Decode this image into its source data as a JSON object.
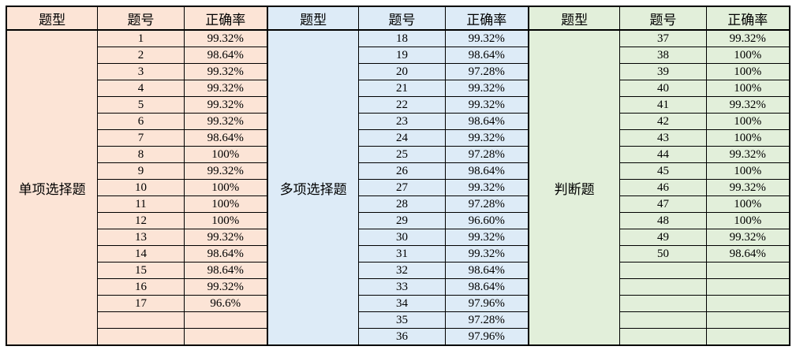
{
  "page": {
    "background_color": "#ffffff",
    "border_color": "#000000"
  },
  "headers": [
    "题型",
    "题号",
    "正确率"
  ],
  "sections": [
    {
      "type_label": "单项选择题",
      "bg_color": "#fce4d6",
      "rows": [
        {
          "no": "1",
          "rate": "99.32%"
        },
        {
          "no": "2",
          "rate": "98.64%"
        },
        {
          "no": "3",
          "rate": "99.32%"
        },
        {
          "no": "4",
          "rate": "99.32%"
        },
        {
          "no": "5",
          "rate": "99.32%"
        },
        {
          "no": "6",
          "rate": "99.32%"
        },
        {
          "no": "7",
          "rate": "98.64%"
        },
        {
          "no": "8",
          "rate": "100%"
        },
        {
          "no": "9",
          "rate": "99.32%"
        },
        {
          "no": "10",
          "rate": "100%"
        },
        {
          "no": "11",
          "rate": "100%"
        },
        {
          "no": "12",
          "rate": "100%"
        },
        {
          "no": "13",
          "rate": "99.32%"
        },
        {
          "no": "14",
          "rate": "98.64%"
        },
        {
          "no": "15",
          "rate": "98.64%"
        },
        {
          "no": "16",
          "rate": "99.32%"
        },
        {
          "no": "17",
          "rate": "96.6%"
        },
        {
          "no": "",
          "rate": ""
        },
        {
          "no": "",
          "rate": ""
        }
      ]
    },
    {
      "type_label": "多项选择题",
      "bg_color": "#ddebf7",
      "rows": [
        {
          "no": "18",
          "rate": "99.32%"
        },
        {
          "no": "19",
          "rate": "98.64%"
        },
        {
          "no": "20",
          "rate": "97.28%"
        },
        {
          "no": "21",
          "rate": "99.32%"
        },
        {
          "no": "22",
          "rate": "99.32%"
        },
        {
          "no": "23",
          "rate": "98.64%"
        },
        {
          "no": "24",
          "rate": "99.32%"
        },
        {
          "no": "25",
          "rate": "97.28%"
        },
        {
          "no": "26",
          "rate": "98.64%"
        },
        {
          "no": "27",
          "rate": "99.32%"
        },
        {
          "no": "28",
          "rate": "97.28%"
        },
        {
          "no": "29",
          "rate": "96.60%"
        },
        {
          "no": "30",
          "rate": "99.32%"
        },
        {
          "no": "31",
          "rate": "99.32%"
        },
        {
          "no": "32",
          "rate": "98.64%"
        },
        {
          "no": "33",
          "rate": "98.64%"
        },
        {
          "no": "34",
          "rate": "97.96%"
        },
        {
          "no": "35",
          "rate": "97.28%"
        },
        {
          "no": "36",
          "rate": "97.96%"
        }
      ]
    },
    {
      "type_label": "判断题",
      "bg_color": "#e2efda",
      "rows": [
        {
          "no": "37",
          "rate": "99.32%"
        },
        {
          "no": "38",
          "rate": "100%"
        },
        {
          "no": "39",
          "rate": "100%"
        },
        {
          "no": "40",
          "rate": "100%"
        },
        {
          "no": "41",
          "rate": "99.32%"
        },
        {
          "no": "42",
          "rate": "100%"
        },
        {
          "no": "43",
          "rate": "100%"
        },
        {
          "no": "44",
          "rate": "99.32%"
        },
        {
          "no": "45",
          "rate": "100%"
        },
        {
          "no": "46",
          "rate": "99.32%"
        },
        {
          "no": "47",
          "rate": "100%"
        },
        {
          "no": "48",
          "rate": "100%"
        },
        {
          "no": "49",
          "rate": "99.32%"
        },
        {
          "no": "50",
          "rate": "98.64%"
        },
        {
          "no": "",
          "rate": ""
        },
        {
          "no": "",
          "rate": ""
        },
        {
          "no": "",
          "rate": ""
        },
        {
          "no": "",
          "rate": ""
        },
        {
          "no": "",
          "rate": ""
        }
      ]
    }
  ]
}
